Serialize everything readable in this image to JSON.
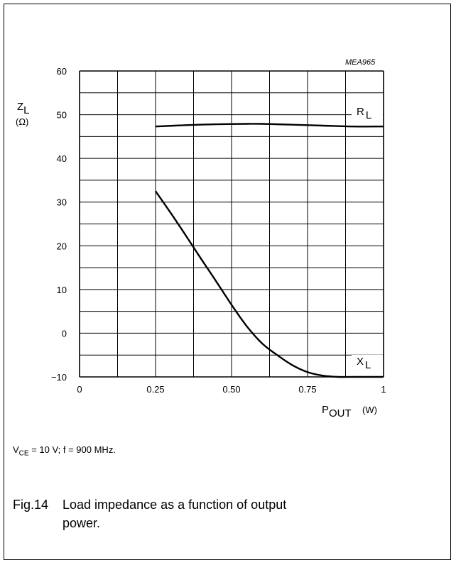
{
  "chart_data": {
    "type": "line",
    "code": "MEA965",
    "y_title_main": "Z",
    "y_title_sub": "L",
    "y_unit": "(Ω)",
    "x_title_main": "P",
    "x_title_sub": "OUT",
    "x_unit": "(W)",
    "xlim": [
      0,
      1
    ],
    "ylim": [
      -10,
      60
    ],
    "x_ticks": [
      "0",
      "0.25",
      "0.50",
      "0.75",
      "1"
    ],
    "y_ticks": [
      "−10",
      "0",
      "10",
      "20",
      "30",
      "40",
      "50",
      "60"
    ],
    "grid": true,
    "series": [
      {
        "label_main": "R",
        "label_sub": "L",
        "x": [
          0.25,
          0.35,
          0.45,
          0.55,
          0.6,
          0.7,
          0.8,
          0.9,
          1.0
        ],
        "y": [
          47.3,
          47.6,
          47.8,
          47.9,
          47.9,
          47.7,
          47.5,
          47.3,
          47.3
        ]
      },
      {
        "label_main": "X",
        "label_sub": "L",
        "x": [
          0.25,
          0.3,
          0.35,
          0.4,
          0.45,
          0.5,
          0.55,
          0.6,
          0.65,
          0.7,
          0.75,
          0.8,
          0.85,
          0.9,
          0.95,
          1.0
        ],
        "y": [
          32.5,
          27.5,
          22.3,
          17.0,
          11.8,
          6.5,
          1.6,
          -2.3,
          -5.0,
          -7.3,
          -8.9,
          -9.7,
          -10.0,
          -10.0,
          -10.0,
          -10.0
        ]
      }
    ]
  },
  "conditions": {
    "v_main": "V",
    "v_sub": "CE",
    "rest": " = 10 V; f = 900 MHz."
  },
  "caption": {
    "number": "Fig.14",
    "text_line1": "Load impedance as a function of output",
    "text_line2": "power."
  }
}
